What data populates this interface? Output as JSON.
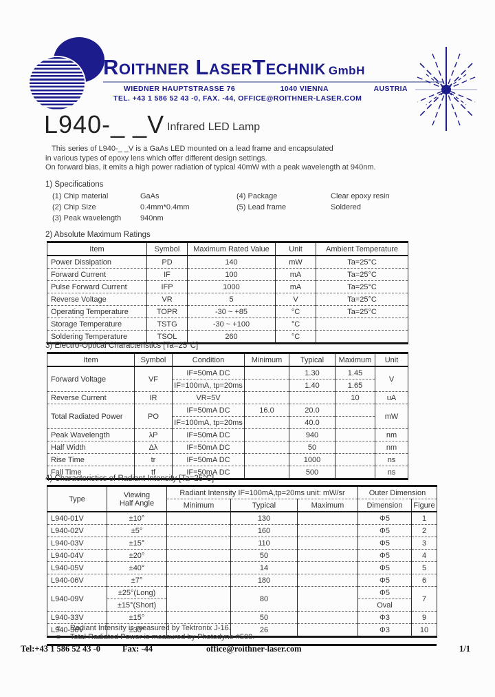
{
  "colors": {
    "navy": "#1c1c8c",
    "text": "#333333",
    "border": "#161616"
  },
  "header": {
    "company": "Roithner LaserTechnik",
    "company_suffix": "GmbH",
    "address1": [
      "WIEDNER HAUPTSTRASSE 76",
      "1040 VIENNA",
      "AUSTRIA"
    ],
    "address2": "TEL. +43 1 586 52 43 -0, FAX. -44, OFFICE@ROITHNER-LASER.COM"
  },
  "title": {
    "model": "L940-_ _V",
    "product": "Infrared LED Lamp"
  },
  "intro": {
    "line1": "This series of L940-_ _V is a GaAs LED mounted on a lead frame and encapsulated",
    "line2": "in various types of epoxy lens which offer different design settings.",
    "line3": "On forward bias, it emits a high power radiation of typical 40mW with a peak wavelength at 940nm."
  },
  "specs": {
    "heading": "1) Specifications",
    "items_left": [
      {
        "label": "(1) Chip material",
        "value": "GaAs"
      },
      {
        "label": "(2) Chip Size",
        "value": "0.4mm*0.4mm"
      },
      {
        "label": "(3) Peak wavelength",
        "value": "940nm"
      }
    ],
    "items_right": [
      {
        "label": "(4) Package",
        "value": "Clear epoxy resin"
      },
      {
        "label": "(5) Lead frame",
        "value": "Soldered"
      }
    ]
  },
  "ratings": {
    "heading": "2) Absolute Maximum Ratings",
    "table": {
      "head": [
        [
          "Item",
          "Symbol",
          "Maximum Rated Value",
          "Unit",
          "Ambient Temperature"
        ]
      ],
      "rows": [
        [
          {
            "t": "Power Dissipation",
            "cls": "left"
          },
          "PD",
          "140",
          "mW",
          "Ta=25°C"
        ],
        [
          {
            "t": "Forward Current",
            "cls": "left"
          },
          "IF",
          "100",
          "mA",
          "Ta=25°C"
        ],
        [
          {
            "t": "Pulse Forward Current",
            "cls": "left"
          },
          "IFP",
          "1000",
          "mA",
          "Ta=25°C"
        ],
        [
          {
            "t": "Reverse Voltage",
            "cls": "left"
          },
          "VR",
          "5",
          "V",
          "Ta=25°C"
        ],
        [
          {
            "t": "Operating Temperature",
            "cls": "left"
          },
          "TOPR",
          "-30 ~ +85",
          "°C",
          "Ta=25°C"
        ],
        [
          {
            "t": "Storage Temperature",
            "cls": "left"
          },
          "TSTG",
          "-30 ~ +100",
          "°C",
          ""
        ],
        [
          {
            "t": "Soldering Temperature",
            "cls": "left"
          },
          "TSOL",
          "260",
          "°C",
          ""
        ]
      ]
    }
  },
  "electro": {
    "heading": "3) Electro-Optical Characteristics [Ta=25°C]",
    "table": {
      "head": [
        [
          "Item",
          "Symbol",
          "Condition",
          "Minimum",
          "Typical",
          "Maximum",
          "Unit"
        ]
      ],
      "rows": [
        [
          {
            "t": "Forward Voltage",
            "cls": "left",
            "rs": 2
          },
          {
            "t": "VF",
            "rs": 2
          },
          "IF=50mA DC",
          "",
          "1.30",
          "1.45",
          {
            "t": "V",
            "rs": 2
          }
        ],
        [
          "IF=100mA, tp=20ms",
          "",
          "1.40",
          "1.65"
        ],
        [
          {
            "t": "Reverse Current",
            "cls": "left"
          },
          "IR",
          "VR=5V",
          "",
          "",
          "10",
          "uA"
        ],
        [
          {
            "t": "Total Radiated Power",
            "cls": "left",
            "rs": 2
          },
          {
            "t": "PO",
            "rs": 2
          },
          "IF=50mA DC",
          "16.0",
          "20.0",
          "",
          {
            "t": "mW",
            "rs": 2
          }
        ],
        [
          "IF=100mA, tp=20ms",
          "",
          "40.0",
          ""
        ],
        [
          {
            "t": "Peak Wavelength",
            "cls": "left"
          },
          "λP",
          "IF=50mA DC",
          "",
          "940",
          "",
          "nm"
        ],
        [
          {
            "t": "Half Width",
            "cls": "left"
          },
          "Δλ",
          "IF=50mA DC",
          "",
          "50",
          "",
          "nm"
        ],
        [
          {
            "t": "Rise Time",
            "cls": "left"
          },
          "tr",
          "IF=50mA DC",
          "",
          "1000",
          "",
          "ns"
        ],
        [
          {
            "t": "Fall Time",
            "cls": "left"
          },
          "tf",
          "IF=50mA DC",
          "",
          "500",
          "",
          "ns"
        ]
      ]
    }
  },
  "radiant": {
    "heading": "4) Characteristics of Radiant Intensity [Ta=25°C]",
    "table": {
      "head": [
        [
          {
            "t": "Type",
            "rs": 2
          },
          {
            "t": "Viewing\nHalf Angle",
            "rs": 2
          },
          {
            "t": "Radiant Intensity IF=100mA,tp=20ms unit: mW/sr",
            "cs": 3
          },
          {
            "t": "Outer Dimension",
            "cs": 2
          }
        ],
        [
          "Minimum",
          "Typical",
          "Maximum",
          "Dimension",
          "Figure"
        ]
      ],
      "rows": [
        [
          {
            "t": "L940-01V",
            "cls": "left"
          },
          "±10°",
          "",
          "130",
          "",
          "Φ5",
          "1"
        ],
        [
          {
            "t": "L940-02V",
            "cls": "left"
          },
          "±5°",
          "",
          "160",
          "",
          "Φ5",
          "2"
        ],
        [
          {
            "t": "L940-03V",
            "cls": "left"
          },
          "±15°",
          "",
          "110",
          "",
          "Φ5",
          "3"
        ],
        [
          {
            "t": "L940-04V",
            "cls": "left"
          },
          "±20°",
          "",
          "50",
          "",
          "Φ5",
          "4"
        ],
        [
          {
            "t": "L940-05V",
            "cls": "left"
          },
          "±40°",
          "",
          "14",
          "",
          "Φ5",
          "5"
        ],
        [
          {
            "t": "L940-06V",
            "cls": "left"
          },
          "±7°",
          "",
          "180",
          "",
          "Φ5",
          "6"
        ],
        [
          {
            "t": "L940-09V",
            "cls": "left",
            "rs": 2
          },
          "±25°(Long)",
          {
            "t": "",
            "rs": 2
          },
          {
            "t": "80",
            "rs": 2
          },
          {
            "t": "",
            "rs": 2
          },
          "Φ5",
          {
            "t": "7",
            "rs": 2
          }
        ],
        [
          "±15°(Short)",
          "Oval"
        ],
        [
          {
            "t": "L940-33V",
            "cls": "left"
          },
          "±15°",
          "",
          "50",
          "",
          "Φ3",
          "9"
        ],
        [
          {
            "t": "L940-36V",
            "cls": "left"
          },
          "±30°",
          "",
          "26",
          "",
          "Φ3",
          "10"
        ]
      ]
    }
  },
  "notes": {
    "marker": "≡",
    "items": [
      "Radiant Intensity is measured by Tektronix J-16.",
      "Total Radiated Power is measured by Photodyne #500."
    ]
  },
  "footer": {
    "tel": "Tel:+43 1 586 52 43 -0",
    "fax": "Fax: -44",
    "email": "office@roithner-laser.com",
    "page": "1/1"
  }
}
